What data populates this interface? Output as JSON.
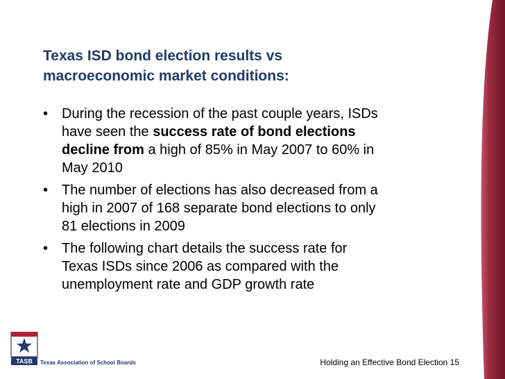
{
  "colors": {
    "title": "#1f3a6b",
    "band_dark": "#7a1e2c",
    "band_light": "#c0546a",
    "logo_red": "#b22234",
    "logo_blue": "#1f3a6b"
  },
  "title": {
    "line1": "Texas ISD bond election results vs",
    "line2": "macroeconomic market conditions:"
  },
  "bullet_glyph": "•",
  "bullets": [
    {
      "l1": "During the recession of the past couple years, ISDs",
      "l2_pre": "have seen the ",
      "l2_bold": "success rate of bond elections",
      "l3_bold": "decline from",
      "l3_post": " a high of 85% in May 2007 to 60% in",
      "l4": "May 2010"
    },
    {
      "l1": "The number of elections has also decreased from a",
      "l2": "high in 2007 of 168 separate bond elections to only",
      "l3": "81 elections in 2009"
    },
    {
      "l1": "The following chart details the success rate for",
      "l2": "Texas ISDs since 2006 as compared with the",
      "l3": "unemployment rate and GDP growth rate"
    }
  ],
  "logo": {
    "mark": "TASB",
    "text": "Texas Association of School Boards"
  },
  "footer": {
    "text": "Holding an Effective Bond Election 15"
  }
}
